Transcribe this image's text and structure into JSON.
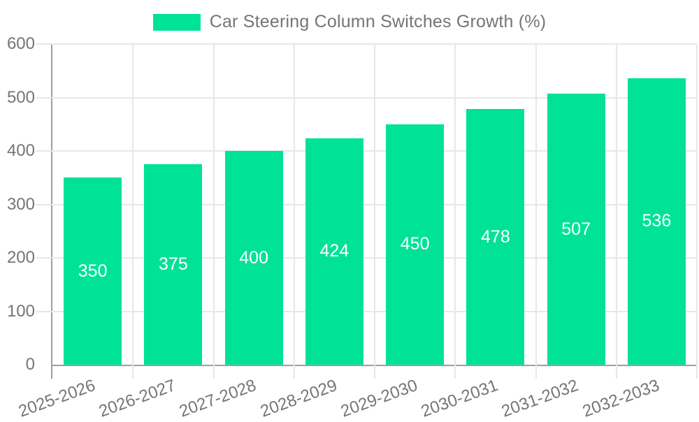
{
  "chart_data": {
    "type": "bar",
    "title": "Car Steering Column Switches Growth (%)",
    "categories": [
      "2025-2026",
      "2026-2027",
      "2027-2028",
      "2028-2029",
      "2029-2030",
      "2030-2031",
      "2031-2032",
      "2032-2033"
    ],
    "values": [
      350,
      375,
      400,
      424,
      450,
      478,
      507,
      536
    ],
    "xlabel": "",
    "ylabel": "",
    "ylim": [
      0,
      600
    ],
    "yticks": [
      0,
      100,
      200,
      300,
      400,
      500,
      600
    ],
    "grid": true,
    "legend_position": "top",
    "colors": {
      "bar": "#00E396",
      "bar_label": "#ffffff",
      "axis_line": "#9e9e9e",
      "gridline": "#e7e7e7",
      "tick_text": "#757575",
      "legend_text": "#757575",
      "background": "#ffffff"
    }
  }
}
